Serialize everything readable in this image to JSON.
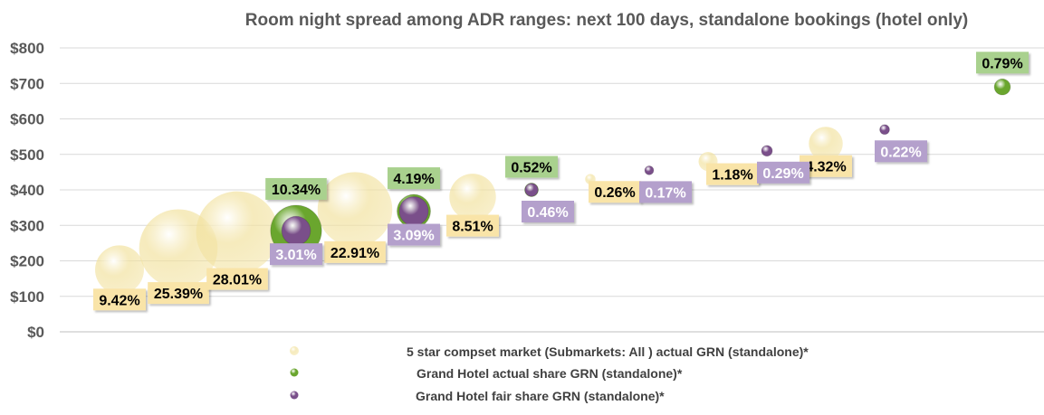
{
  "chart_data": {
    "type": "bubble",
    "title": "Room night spread among ADR ranges: next 100 days, standalone bookings (hotel only)",
    "xlabel": "",
    "ylabel": "",
    "ylim": [
      0,
      800
    ],
    "yticks": [
      "$0",
      "$100",
      "$200",
      "$300",
      "$400",
      "$500",
      "$600",
      "$700",
      "$800"
    ],
    "grid": true,
    "legend_position": "bottom",
    "series": [
      {
        "name": "5 star compset market (Submarkets: All ) actual GRN (standalone)*",
        "color": "#f2e2a0",
        "label_bg": "#f9e4a8",
        "points": [
          {
            "x": 1,
            "y": 175,
            "size": 9.42,
            "label": "9.42%"
          },
          {
            "x": 2,
            "y": 235,
            "size": 25.39,
            "label": "25.39%"
          },
          {
            "x": 3,
            "y": 280,
            "size": 28.01,
            "label": "28.01%"
          },
          {
            "x": 5,
            "y": 345,
            "size": 22.91,
            "label": "22.91%"
          },
          {
            "x": 7,
            "y": 380,
            "size": 8.51,
            "label": "8.51%"
          },
          {
            "x": 9,
            "y": 430,
            "size": 0.26,
            "label": "0.26%"
          },
          {
            "x": 11,
            "y": 480,
            "size": 1.18,
            "label": "1.18%"
          },
          {
            "x": 13,
            "y": 530,
            "size": 4.32,
            "label": "4.32%"
          }
        ]
      },
      {
        "name": "Grand Hotel actual share GRN (standalone)*",
        "color": "#6aa62e",
        "label_bg": "#a9d18e",
        "points": [
          {
            "x": 4,
            "y": 285,
            "size": 10.34,
            "label": "10.34%"
          },
          {
            "x": 6,
            "y": 340,
            "size": 4.19,
            "label": "4.19%"
          },
          {
            "x": 8,
            "y": 400,
            "size": 0.52,
            "label": "0.52%"
          },
          {
            "x": 16,
            "y": 690,
            "size": 0.79,
            "label": "0.79%"
          }
        ]
      },
      {
        "name": "Grand Hotel fair share GRN (standalone)*",
        "color": "#7a4f8a",
        "label_bg": "#b4a0cc",
        "points": [
          {
            "x": 4,
            "y": 285,
            "size": 3.01,
            "label": "3.01%"
          },
          {
            "x": 6,
            "y": 340,
            "size": 3.09,
            "label": "3.09%"
          },
          {
            "x": 8,
            "y": 400,
            "size": 0.46,
            "label": "0.46%"
          },
          {
            "x": 10,
            "y": 455,
            "size": 0.17,
            "label": "0.17%"
          },
          {
            "x": 12,
            "y": 510,
            "size": 0.29,
            "label": "0.29%"
          },
          {
            "x": 14,
            "y": 570,
            "size": 0.22,
            "label": "0.22%"
          }
        ]
      }
    ]
  }
}
